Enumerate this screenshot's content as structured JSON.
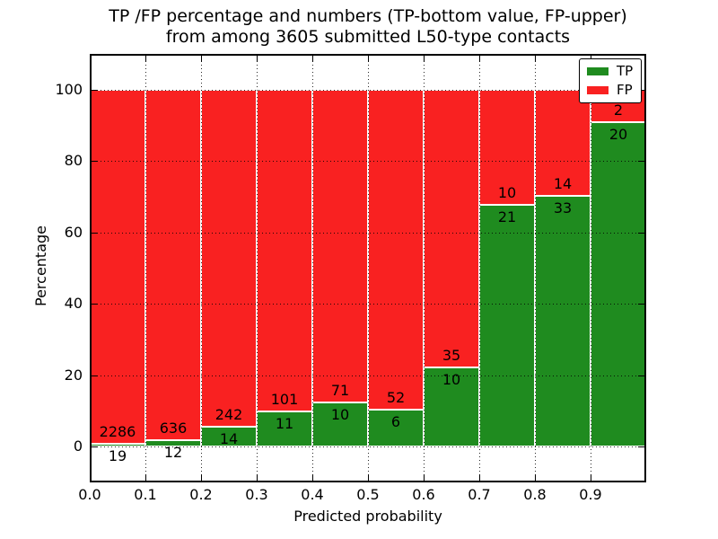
{
  "title": {
    "line1": "TP /FP percentage and numbers (TP-bottom value, FP-upper)",
    "line2": "from among 3605 submitted L50-type contacts"
  },
  "colors": {
    "background": "#ffffff",
    "axis": "#000000",
    "text": "#000000",
    "tp": "#1f8b1f",
    "fp": "#f92121"
  },
  "chart_data": {
    "type": "bar",
    "stacked": true,
    "normalized": "each bar totals 100%",
    "title": "TP /FP percentage and numbers (TP-bottom value, FP-upper) from among 3605 submitted L50-type contacts",
    "xlabel": "Predicted probability",
    "ylabel": "Percentage",
    "total_contacts": 3605,
    "bin_edges": [
      0.0,
      0.1,
      0.2,
      0.3,
      0.4,
      0.5,
      0.6,
      0.7,
      0.8,
      0.9,
      1.0
    ],
    "xticks": [
      "0.0",
      "0.1",
      "0.2",
      "0.3",
      "0.4",
      "0.5",
      "0.6",
      "0.7",
      "0.8",
      "0.9"
    ],
    "yticks": [
      0,
      20,
      40,
      60,
      80,
      100
    ],
    "xlim": [
      0,
      1
    ],
    "ylim": [
      -10,
      110
    ],
    "grid": "dotted",
    "legend_position": "upper right",
    "series": [
      {
        "name": "TP",
        "color": "#1f8b1f",
        "counts": [
          19,
          12,
          14,
          11,
          10,
          6,
          10,
          21,
          33,
          20
        ]
      },
      {
        "name": "FP",
        "color": "#f92121",
        "counts": [
          2286,
          636,
          242,
          101,
          71,
          52,
          35,
          10,
          14,
          2
        ]
      }
    ],
    "tp_percent": [
      0.82,
      1.85,
      5.47,
      9.82,
      12.35,
      10.34,
      22.22,
      67.74,
      70.21,
      90.91
    ]
  }
}
